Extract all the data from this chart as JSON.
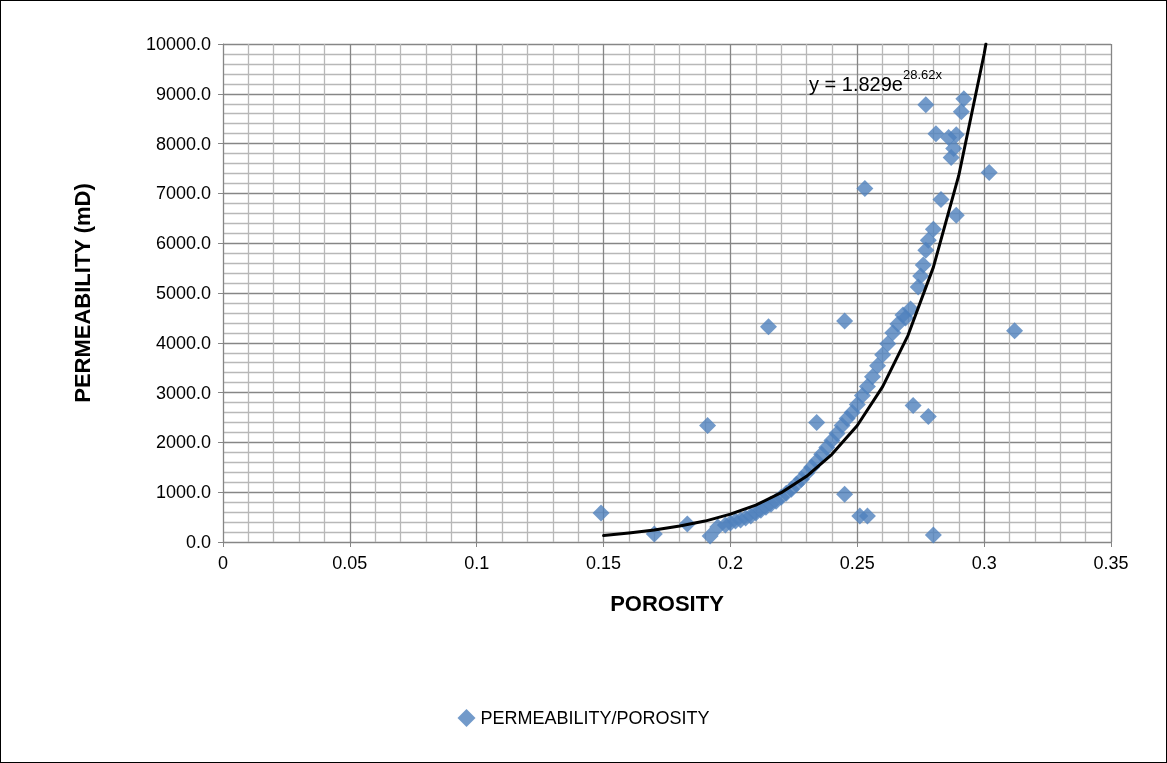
{
  "chart_data": {
    "type": "scatter",
    "xlabel": "POROSITY",
    "ylabel": "PERMEABILITY (mD)",
    "xlim": [
      0,
      0.35
    ],
    "xticks": [
      0,
      0.05,
      0.1,
      0.15,
      0.2,
      0.25,
      0.3,
      0.35
    ],
    "ylim": [
      0,
      10000
    ],
    "yticks": [
      {
        "value": 0,
        "label": "0.0"
      },
      {
        "value": 1000,
        "label": "1000.0"
      },
      {
        "value": 2000,
        "label": "2000.0"
      },
      {
        "value": 3000,
        "label": "3000.0"
      },
      {
        "value": 4000,
        "label": "4000.0"
      },
      {
        "value": 5000,
        "label": "5000.0"
      },
      {
        "value": 6000,
        "label": "6000.0"
      },
      {
        "value": 7000,
        "label": "7000.0"
      },
      {
        "value": 8000,
        "label": "8000.0"
      },
      {
        "value": 9000,
        "label": "9000.0"
      },
      {
        "value": 10000,
        "label": "10000.0"
      }
    ],
    "grid": true,
    "legend": "bottom",
    "marker": "diamond",
    "annotations": [
      "y = 1.829e$^{28.62x}$"
    ],
    "series": [
      {
        "name": "PERMEABILITY/POROSITY",
        "color": "#4f81bd",
        "x": [
          0.149,
          0.17,
          0.183,
          0.192,
          0.191,
          0.215,
          0.234,
          0.245,
          0.245,
          0.251,
          0.254,
          0.253,
          0.272,
          0.278,
          0.28,
          0.312,
          0.302,
          0.277,
          0.292,
          0.291,
          0.281,
          0.286,
          0.289,
          0.288,
          0.287,
          0.289,
          0.283,
          0.28,
          0.278,
          0.277,
          0.276,
          0.275,
          0.274,
          0.271,
          0.269,
          0.195,
          0.198,
          0.2,
          0.202,
          0.204,
          0.206,
          0.208,
          0.21,
          0.212,
          0.214,
          0.216,
          0.218,
          0.22,
          0.222,
          0.224,
          0.226,
          0.228,
          0.23,
          0.232,
          0.234,
          0.236,
          0.238,
          0.24,
          0.242,
          0.244,
          0.246,
          0.248,
          0.25,
          0.252,
          0.254,
          0.256,
          0.258,
          0.26,
          0.262,
          0.264,
          0.266,
          0.268
        ],
        "values": [
          580,
          160,
          360,
          120,
          2340,
          4320,
          2400,
          4440,
          960,
          520,
          520,
          7100,
          2740,
          2520,
          140,
          4240,
          7420,
          8780,
          8900,
          8640,
          8200,
          8120,
          8180,
          7900,
          7720,
          6560,
          6880,
          6280,
          6060,
          5860,
          5560,
          5340,
          5120,
          4680,
          4500,
          300,
          340,
          380,
          420,
          440,
          480,
          520,
          580,
          640,
          700,
          760,
          820,
          900,
          980,
          1060,
          1160,
          1260,
          1380,
          1500,
          1620,
          1760,
          1900,
          2040,
          2180,
          2340,
          2480,
          2600,
          2760,
          2940,
          3120,
          3320,
          3540,
          3760,
          3980,
          4200,
          4380,
          4560
        ]
      },
      {
        "type": "line",
        "color": "#000000",
        "marker": "none",
        "line_style": "solid",
        "x": [
          0.15,
          0.16,
          0.17,
          0.18,
          0.19,
          0.2,
          0.21,
          0.22,
          0.23,
          0.24,
          0.25,
          0.26,
          0.27,
          0.28,
          0.29,
          0.3,
          0.3007
        ],
        "values": [
          130,
          180,
          240,
          320,
          420,
          560,
          740,
          990,
          1320,
          1760,
          2340,
          3120,
          4150,
          5520,
          7360,
          9800,
          10000
        ]
      }
    ]
  }
}
